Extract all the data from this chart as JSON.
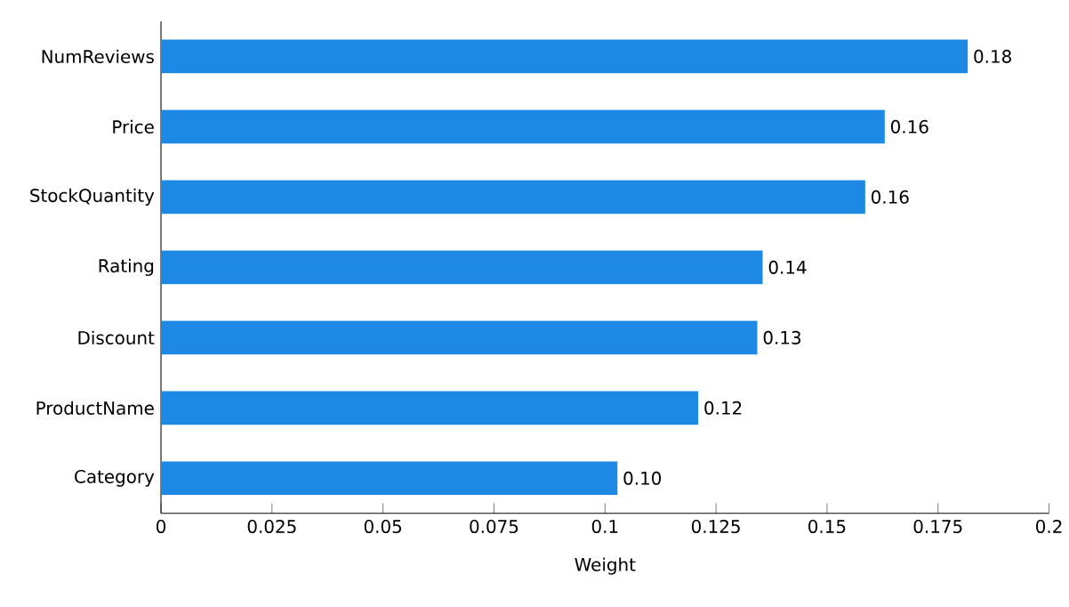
{
  "chart_data": {
    "type": "bar",
    "orientation": "horizontal",
    "xlabel": "Weight",
    "categories": [
      "NumReviews",
      "Price",
      "StockQuantity",
      "Rating",
      "Discount",
      "ProductName",
      "Category"
    ],
    "values": [
      0.1817,
      0.163,
      0.1586,
      0.1355,
      0.1343,
      0.121,
      0.1028
    ],
    "value_labels": [
      "0.18",
      "0.16",
      "0.16",
      "0.14",
      "0.13",
      "0.12",
      "0.10"
    ],
    "color": "#1e88e5",
    "xlim": [
      0,
      0.2
    ],
    "xticks": [
      0,
      0.025,
      0.05,
      0.075,
      0.1,
      0.125,
      0.15,
      0.175,
      0.2
    ]
  }
}
